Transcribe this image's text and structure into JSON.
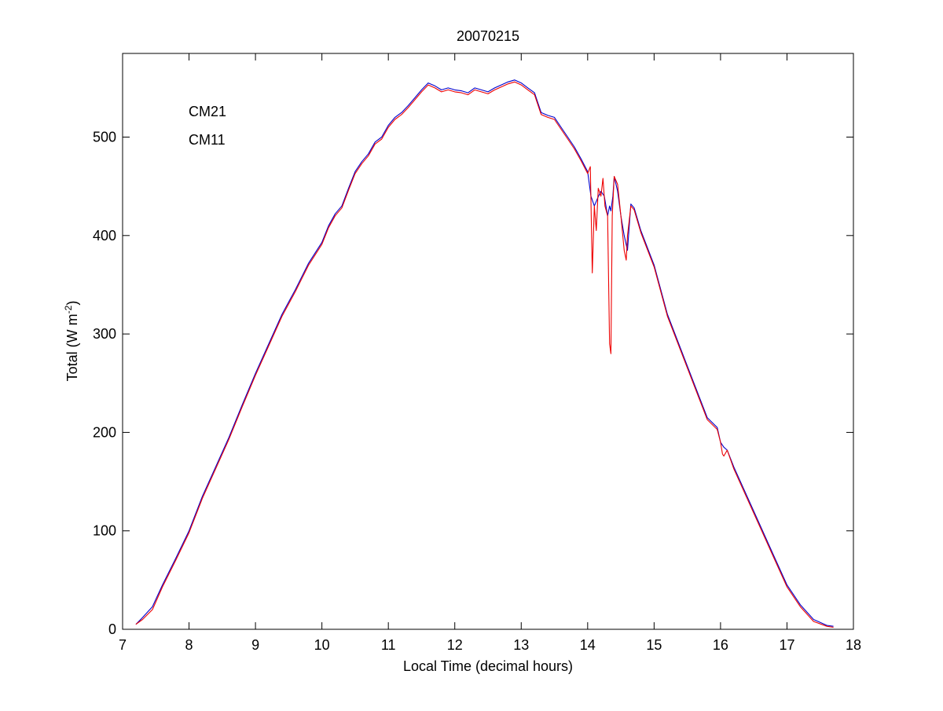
{
  "chart_data": {
    "type": "line",
    "title": "20070215",
    "xlabel": "Local Time (decimal hours)",
    "ylabel": "Total (W m⁻²)",
    "ylabel_parts": {
      "before": "Total (W m",
      "sup": "-2",
      "after": ")"
    },
    "xlim": [
      7,
      18
    ],
    "ylim": [
      0,
      585
    ],
    "xticks": [
      7,
      8,
      9,
      10,
      11,
      12,
      13,
      14,
      15,
      16,
      17,
      18
    ],
    "yticks": [
      0,
      100,
      200,
      300,
      400,
      500
    ],
    "grid": false,
    "legend": {
      "placement": "top-left",
      "style": "colored-text"
    },
    "series": [
      {
        "name": "CM21",
        "color": "#0000cc",
        "x": [
          7.2,
          7.3,
          7.45,
          7.6,
          7.8,
          8.0,
          8.2,
          8.4,
          8.6,
          8.8,
          9.0,
          9.2,
          9.4,
          9.6,
          9.8,
          10.0,
          10.1,
          10.2,
          10.3,
          10.4,
          10.5,
          10.6,
          10.7,
          10.8,
          10.9,
          11.0,
          11.1,
          11.2,
          11.3,
          11.4,
          11.5,
          11.6,
          11.7,
          11.8,
          11.9,
          12.0,
          12.1,
          12.2,
          12.3,
          12.4,
          12.5,
          12.6,
          12.7,
          12.8,
          12.9,
          13.0,
          13.1,
          13.2,
          13.3,
          13.4,
          13.5,
          13.6,
          13.7,
          13.8,
          13.9,
          14.0,
          14.05,
          14.1,
          14.15,
          14.2,
          14.25,
          14.3,
          14.33,
          14.35,
          14.38,
          14.4,
          14.45,
          14.5,
          14.55,
          14.6,
          14.65,
          14.7,
          14.8,
          15.0,
          15.2,
          15.4,
          15.6,
          15.8,
          15.95,
          16.0,
          16.05,
          16.1,
          16.2,
          16.4,
          16.6,
          16.8,
          17.0,
          17.2,
          17.4,
          17.6,
          17.7
        ],
        "y": [
          5,
          12,
          23,
          45,
          72,
          100,
          135,
          165,
          195,
          228,
          260,
          290,
          320,
          345,
          372,
          393,
          410,
          422,
          430,
          448,
          465,
          475,
          483,
          495,
          500,
          512,
          520,
          525,
          532,
          540,
          548,
          555,
          552,
          548,
          550,
          548,
          547,
          545,
          550,
          548,
          546,
          550,
          553,
          556,
          558,
          555,
          550,
          545,
          525,
          522,
          520,
          510,
          500,
          490,
          478,
          465,
          440,
          430,
          438,
          445,
          440,
          420,
          430,
          425,
          440,
          460,
          445,
          420,
          400,
          385,
          432,
          428,
          405,
          370,
          320,
          285,
          250,
          215,
          205,
          190,
          185,
          182,
          165,
          135,
          105,
          75,
          45,
          25,
          10,
          4,
          3
        ]
      },
      {
        "name": "CM11",
        "color": "#ee0000",
        "x": [
          7.2,
          7.3,
          7.45,
          7.6,
          7.8,
          8.0,
          8.2,
          8.4,
          8.6,
          8.8,
          9.0,
          9.2,
          9.4,
          9.6,
          9.8,
          10.0,
          10.1,
          10.2,
          10.3,
          10.4,
          10.5,
          10.6,
          10.7,
          10.8,
          10.9,
          11.0,
          11.1,
          11.2,
          11.3,
          11.4,
          11.5,
          11.6,
          11.7,
          11.8,
          11.9,
          12.0,
          12.1,
          12.2,
          12.3,
          12.4,
          12.5,
          12.6,
          12.7,
          12.8,
          12.9,
          13.0,
          13.1,
          13.2,
          13.3,
          13.4,
          13.5,
          13.6,
          13.7,
          13.8,
          13.9,
          14.0,
          14.04,
          14.07,
          14.1,
          14.13,
          14.16,
          14.2,
          14.23,
          14.26,
          14.3,
          14.33,
          14.35,
          14.37,
          14.4,
          14.45,
          14.5,
          14.55,
          14.58,
          14.6,
          14.65,
          14.7,
          14.8,
          15.0,
          15.2,
          15.4,
          15.6,
          15.8,
          15.95,
          16.0,
          16.03,
          16.05,
          16.1,
          16.2,
          16.4,
          16.6,
          16.8,
          17.0,
          17.2,
          17.4,
          17.6,
          17.7
        ],
        "y": [
          5,
          10,
          20,
          43,
          70,
          98,
          133,
          163,
          193,
          226,
          258,
          288,
          318,
          343,
          370,
          391,
          408,
          420,
          428,
          446,
          463,
          473,
          481,
          493,
          498,
          510,
          518,
          523,
          530,
          538,
          546,
          553,
          550,
          546,
          548,
          546,
          545,
          543,
          548,
          546,
          544,
          548,
          551,
          554,
          556,
          553,
          548,
          543,
          523,
          520,
          518,
          508,
          498,
          488,
          476,
          463,
          470,
          362,
          430,
          405,
          448,
          440,
          458,
          430,
          420,
          290,
          280,
          420,
          460,
          452,
          420,
          385,
          375,
          400,
          430,
          426,
          403,
          368,
          318,
          283,
          248,
          213,
          203,
          190,
          178,
          176,
          182,
          163,
          133,
          103,
          73,
          43,
          23,
          8,
          3,
          2
        ]
      }
    ]
  }
}
